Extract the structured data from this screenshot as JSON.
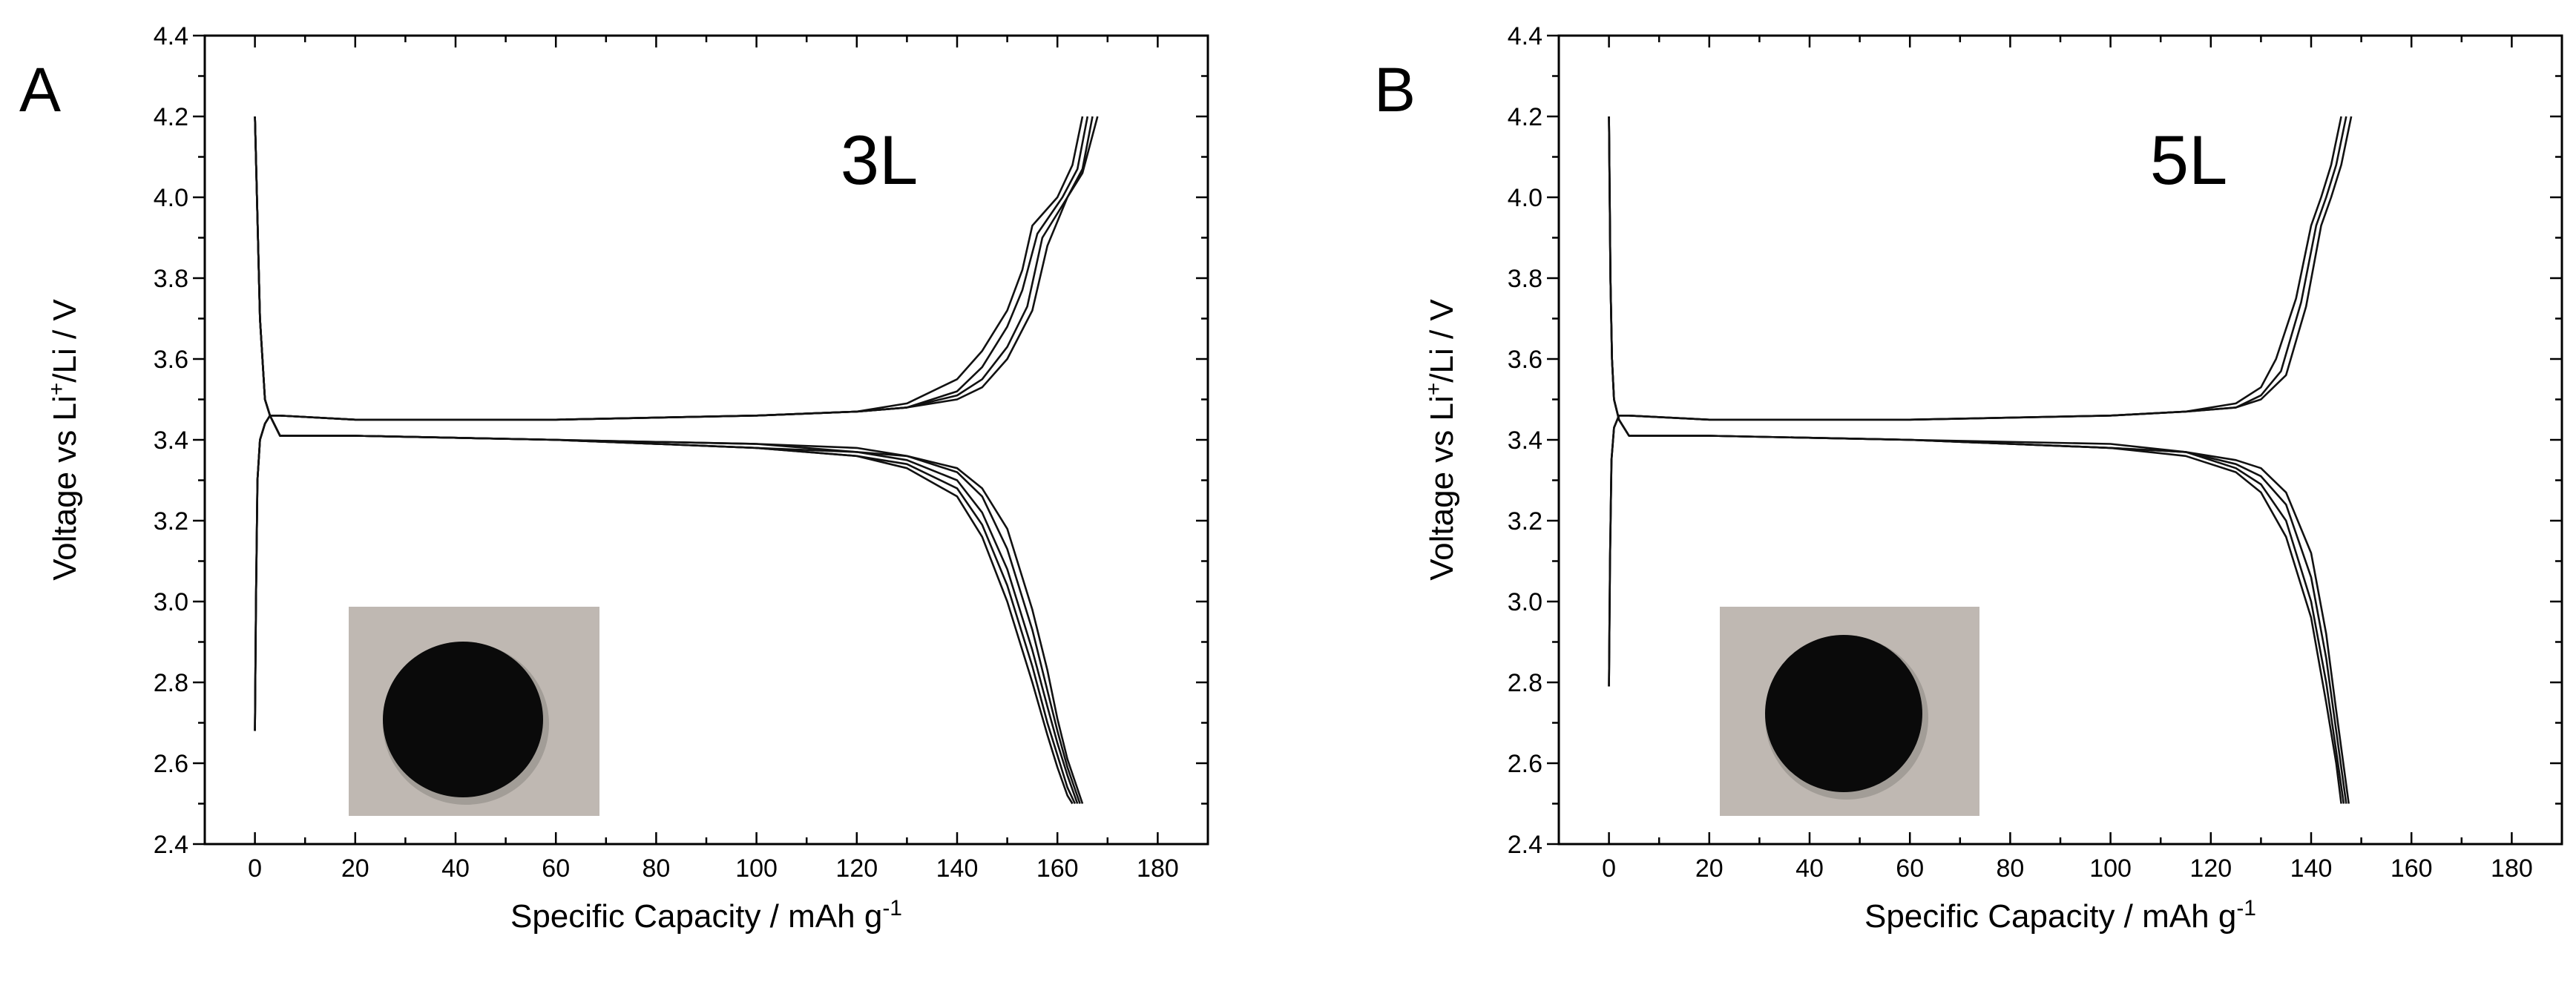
{
  "chart_data": [
    {
      "type": "line",
      "panel_label": "A",
      "annotation": "3L",
      "xlabel": "Specific Capacity / mAh g",
      "xlabel_superscript": "-1",
      "ylabel_parts": [
        "Voltage vs Li",
        "+",
        "/Li / V"
      ],
      "xlim": [
        -10,
        190
      ],
      "ylim": [
        2.4,
        4.4
      ],
      "x_ticks": [
        0,
        20,
        40,
        60,
        80,
        100,
        120,
        140,
        160,
        180
      ],
      "y_ticks": [
        2.4,
        2.6,
        2.8,
        3.0,
        3.2,
        3.4,
        3.6,
        3.8,
        4.0,
        4.2,
        4.4
      ],
      "y_tick_labels": [
        "2.4",
        "2.6",
        "2.8",
        "3.0",
        "3.2",
        "3.4",
        "3.6",
        "3.8",
        "4.0",
        "4.2",
        "4.4"
      ],
      "grid": false,
      "inset": "photo of black circular electrode disc on grey background",
      "series": [
        {
          "x": [
            0,
            0.5,
            1,
            2,
            3,
            5,
            20,
            60,
            100,
            120,
            130,
            140,
            145,
            150,
            155,
            158,
            160,
            162,
            163
          ],
          "y": [
            4.2,
            3.95,
            3.7,
            3.5,
            3.46,
            3.41,
            3.41,
            3.4,
            3.38,
            3.36,
            3.33,
            3.26,
            3.16,
            3.0,
            2.8,
            2.67,
            2.59,
            2.52,
            2.5
          ]
        },
        {
          "x": [
            0,
            0.5,
            1,
            2,
            3,
            5,
            20,
            60,
            100,
            120,
            130,
            140,
            145,
            150,
            155,
            158,
            160,
            162,
            163.5
          ],
          "y": [
            4.2,
            3.95,
            3.7,
            3.5,
            3.46,
            3.41,
            3.41,
            3.4,
            3.38,
            3.36,
            3.34,
            3.28,
            3.19,
            3.04,
            2.84,
            2.7,
            2.62,
            2.54,
            2.5
          ]
        },
        {
          "x": [
            0,
            0.5,
            1,
            2,
            3,
            5,
            20,
            60,
            100,
            120,
            130,
            140,
            145,
            150,
            155,
            158,
            160,
            162,
            164
          ],
          "y": [
            4.2,
            3.95,
            3.7,
            3.5,
            3.46,
            3.41,
            3.41,
            3.4,
            3.38,
            3.37,
            3.35,
            3.3,
            3.22,
            3.08,
            2.88,
            2.74,
            2.65,
            2.57,
            2.5
          ]
        },
        {
          "x": [
            0,
            0.5,
            1,
            2,
            3,
            5,
            20,
            60,
            100,
            120,
            130,
            140,
            145,
            150,
            155,
            158,
            160,
            162,
            164.5
          ],
          "y": [
            4.2,
            3.95,
            3.7,
            3.5,
            3.46,
            3.41,
            3.41,
            3.4,
            3.39,
            3.37,
            3.36,
            3.32,
            3.26,
            3.13,
            2.93,
            2.78,
            2.68,
            2.59,
            2.5
          ]
        },
        {
          "x": [
            0,
            0.5,
            1,
            2,
            3,
            5,
            20,
            60,
            100,
            120,
            130,
            140,
            145,
            150,
            155,
            158,
            160,
            162,
            165
          ],
          "y": [
            4.2,
            3.95,
            3.7,
            3.5,
            3.46,
            3.41,
            3.41,
            3.4,
            3.39,
            3.38,
            3.36,
            3.33,
            3.28,
            3.18,
            2.98,
            2.83,
            2.71,
            2.61,
            2.5
          ]
        },
        {
          "x": [
            0,
            0.2,
            0.5,
            1,
            2,
            3,
            5,
            20,
            60,
            100,
            120,
            130,
            140,
            145,
            150,
            153,
            155,
            160,
            163,
            165
          ],
          "y": [
            2.68,
            3.0,
            3.3,
            3.4,
            3.44,
            3.46,
            3.46,
            3.45,
            3.45,
            3.46,
            3.47,
            3.49,
            3.55,
            3.62,
            3.72,
            3.82,
            3.93,
            4.0,
            4.08,
            4.2
          ]
        },
        {
          "x": [
            0,
            0.2,
            0.5,
            1,
            2,
            3,
            5,
            20,
            60,
            100,
            120,
            130,
            140,
            145,
            150,
            153,
            156,
            161,
            164,
            166
          ],
          "y": [
            2.68,
            3.0,
            3.3,
            3.4,
            3.44,
            3.46,
            3.46,
            3.45,
            3.45,
            3.46,
            3.47,
            3.48,
            3.52,
            3.58,
            3.68,
            3.77,
            3.91,
            4.0,
            4.07,
            4.2
          ]
        },
        {
          "x": [
            0,
            0.2,
            0.5,
            1,
            2,
            3,
            5,
            20,
            60,
            100,
            120,
            130,
            140,
            145,
            150,
            154,
            157,
            162,
            165,
            167
          ],
          "y": [
            2.68,
            3.0,
            3.3,
            3.4,
            3.44,
            3.46,
            3.46,
            3.45,
            3.45,
            3.46,
            3.47,
            3.48,
            3.51,
            3.55,
            3.63,
            3.73,
            3.9,
            4.0,
            4.07,
            4.2
          ]
        },
        {
          "x": [
            0,
            0.2,
            0.5,
            1,
            2,
            3,
            5,
            20,
            60,
            100,
            120,
            130,
            140,
            145,
            150,
            155,
            158,
            162,
            165,
            168
          ],
          "y": [
            2.68,
            3.0,
            3.3,
            3.4,
            3.44,
            3.46,
            3.46,
            3.45,
            3.45,
            3.46,
            3.47,
            3.48,
            3.5,
            3.53,
            3.6,
            3.72,
            3.88,
            4.0,
            4.06,
            4.2
          ]
        }
      ]
    },
    {
      "type": "line",
      "panel_label": "B",
      "annotation": "5L",
      "xlabel": "Specific Capacity / mAh g",
      "xlabel_superscript": "-1",
      "ylabel_parts": [
        "Voltage vs Li",
        "+",
        "/Li / V"
      ],
      "xlim": [
        -10,
        190
      ],
      "ylim": [
        2.4,
        4.4
      ],
      "x_ticks": [
        0,
        20,
        40,
        60,
        80,
        100,
        120,
        140,
        160,
        180
      ],
      "y_ticks": [
        2.4,
        2.6,
        2.8,
        3.0,
        3.2,
        3.4,
        3.6,
        3.8,
        4.0,
        4.2,
        4.4
      ],
      "y_tick_labels": [
        "2.4",
        "2.6",
        "2.8",
        "3.0",
        "3.2",
        "3.4",
        "3.6",
        "3.8",
        "4.0",
        "4.2",
        "4.4"
      ],
      "grid": false,
      "inset": "photo of black circular electrode disc on grey background",
      "series": [
        {
          "x": [
            0,
            0.3,
            0.6,
            1,
            2,
            4,
            20,
            60,
            100,
            115,
            125,
            130,
            135,
            140,
            143,
            145,
            146
          ],
          "y": [
            4.2,
            3.8,
            3.6,
            3.5,
            3.45,
            3.41,
            3.41,
            3.4,
            3.38,
            3.36,
            3.32,
            3.27,
            3.16,
            2.96,
            2.75,
            2.6,
            2.5
          ]
        },
        {
          "x": [
            0,
            0.3,
            0.6,
            1,
            2,
            4,
            20,
            60,
            100,
            115,
            125,
            130,
            135,
            140,
            143,
            145,
            146.5
          ],
          "y": [
            4.2,
            3.8,
            3.6,
            3.5,
            3.45,
            3.41,
            3.41,
            3.4,
            3.38,
            3.37,
            3.33,
            3.29,
            3.2,
            3.0,
            2.8,
            2.63,
            2.5
          ]
        },
        {
          "x": [
            0,
            0.3,
            0.6,
            1,
            2,
            4,
            20,
            60,
            100,
            115,
            125,
            130,
            135,
            140,
            143,
            145,
            147
          ],
          "y": [
            4.2,
            3.8,
            3.6,
            3.5,
            3.45,
            3.41,
            3.41,
            3.4,
            3.38,
            3.37,
            3.34,
            3.31,
            3.24,
            3.06,
            2.86,
            2.68,
            2.5
          ]
        },
        {
          "x": [
            0,
            0.3,
            0.6,
            1,
            2,
            4,
            20,
            60,
            100,
            115,
            125,
            130,
            135,
            140,
            143,
            145,
            147.5
          ],
          "y": [
            4.2,
            3.8,
            3.6,
            3.5,
            3.45,
            3.41,
            3.41,
            3.4,
            3.39,
            3.37,
            3.35,
            3.33,
            3.27,
            3.12,
            2.92,
            2.73,
            2.5
          ]
        },
        {
          "x": [
            0,
            0.2,
            0.5,
            1,
            2,
            4,
            20,
            60,
            100,
            115,
            125,
            130,
            133,
            137,
            140,
            142,
            144,
            146
          ],
          "y": [
            2.79,
            3.1,
            3.35,
            3.43,
            3.46,
            3.46,
            3.45,
            3.45,
            3.46,
            3.47,
            3.49,
            3.53,
            3.6,
            3.75,
            3.93,
            4.0,
            4.08,
            4.2
          ]
        },
        {
          "x": [
            0,
            0.2,
            0.5,
            1,
            2,
            4,
            20,
            60,
            100,
            115,
            125,
            130,
            134,
            138,
            141,
            143,
            145,
            147
          ],
          "y": [
            2.79,
            3.1,
            3.35,
            3.43,
            3.46,
            3.46,
            3.45,
            3.45,
            3.46,
            3.47,
            3.48,
            3.51,
            3.57,
            3.74,
            3.93,
            4.0,
            4.08,
            4.2
          ]
        },
        {
          "x": [
            0,
            0.2,
            0.5,
            1,
            2,
            4,
            20,
            60,
            100,
            115,
            125,
            130,
            135,
            139,
            142,
            144,
            146,
            148
          ],
          "y": [
            2.79,
            3.1,
            3.35,
            3.43,
            3.46,
            3.46,
            3.45,
            3.45,
            3.46,
            3.47,
            3.48,
            3.5,
            3.56,
            3.73,
            3.93,
            4.0,
            4.08,
            4.2
          ]
        }
      ]
    }
  ]
}
